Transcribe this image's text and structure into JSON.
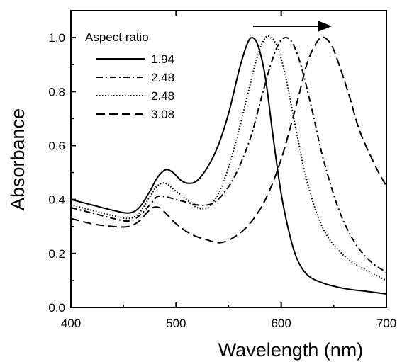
{
  "chart_data": {
    "type": "line",
    "title": "",
    "xlabel": "Wavelength (nm)",
    "ylabel": "Absorbance",
    "xlim": [
      400,
      700
    ],
    "ylim": [
      0.0,
      1.1
    ],
    "x_ticks": [
      "400",
      "500",
      "600",
      "700"
    ],
    "y_ticks": [
      "0.0",
      "0.2",
      "0.4",
      "0.6",
      "0.8",
      "1.0"
    ],
    "legend": {
      "title": "Aspect ratio",
      "position": "top-left"
    },
    "annotation": "arrow indicating red-shift of peak with increasing aspect ratio",
    "series": [
      {
        "name": "1.94",
        "style": "solid",
        "x": [
          400,
          420,
          440,
          455,
          465,
          475,
          482,
          490,
          497,
          505,
          512,
          520,
          530,
          540,
          550,
          560,
          567,
          572,
          578,
          585,
          592,
          600,
          608,
          615,
          625,
          640,
          660,
          680,
          700
        ],
        "y": [
          0.4,
          0.38,
          0.36,
          0.35,
          0.37,
          0.43,
          0.48,
          0.51,
          0.5,
          0.47,
          0.46,
          0.47,
          0.52,
          0.6,
          0.72,
          0.88,
          0.97,
          1.0,
          0.97,
          0.85,
          0.64,
          0.42,
          0.27,
          0.18,
          0.12,
          0.09,
          0.07,
          0.06,
          0.05
        ]
      },
      {
        "name": "2.48",
        "style": "dashdot",
        "x": [
          400,
          420,
          440,
          455,
          465,
          475,
          482,
          490,
          500,
          510,
          520,
          530,
          540,
          555,
          570,
          580,
          590,
          598,
          605,
          612,
          620,
          630,
          640,
          655,
          670,
          685,
          700
        ],
        "y": [
          0.37,
          0.35,
          0.33,
          0.32,
          0.34,
          0.38,
          0.41,
          0.41,
          0.4,
          0.39,
          0.38,
          0.38,
          0.4,
          0.48,
          0.62,
          0.76,
          0.9,
          0.98,
          1.0,
          0.97,
          0.88,
          0.72,
          0.55,
          0.36,
          0.24,
          0.17,
          0.13
        ]
      },
      {
        "name": "2.48",
        "style": "dotted",
        "x": [
          400,
          420,
          440,
          455,
          465,
          475,
          482,
          490,
          500,
          510,
          520,
          530,
          540,
          550,
          560,
          570,
          578,
          585,
          590,
          597,
          605,
          615,
          625,
          640,
          660,
          680,
          700
        ],
        "y": [
          0.38,
          0.36,
          0.34,
          0.33,
          0.35,
          0.41,
          0.45,
          0.46,
          0.43,
          0.4,
          0.37,
          0.37,
          0.42,
          0.52,
          0.66,
          0.82,
          0.94,
          1.0,
          1.0,
          0.96,
          0.84,
          0.64,
          0.46,
          0.29,
          0.19,
          0.14,
          0.1
        ]
      },
      {
        "name": "3.08",
        "style": "dashed",
        "x": [
          400,
          420,
          440,
          455,
          465,
          472,
          478,
          484,
          490,
          500,
          515,
          530,
          542,
          555,
          570,
          585,
          600,
          615,
          625,
          635,
          641,
          648,
          655,
          665,
          675,
          690,
          700
        ],
        "y": [
          0.33,
          0.31,
          0.3,
          0.3,
          0.32,
          0.35,
          0.37,
          0.37,
          0.35,
          0.31,
          0.27,
          0.25,
          0.24,
          0.26,
          0.31,
          0.4,
          0.55,
          0.76,
          0.91,
          0.99,
          1.0,
          0.97,
          0.9,
          0.78,
          0.65,
          0.52,
          0.45
        ]
      }
    ]
  }
}
